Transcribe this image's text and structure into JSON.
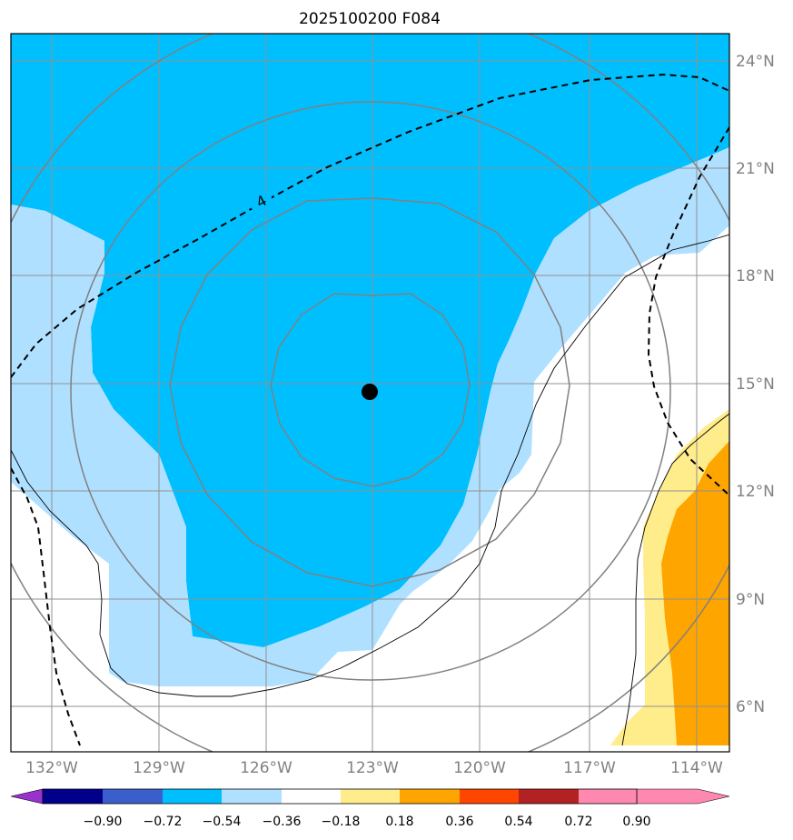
{
  "title": "2025100200 F084",
  "latitude_labels": [
    "24°N",
    "21°N",
    "18°N",
    "15°N",
    "12°N",
    "9°N",
    "6°N"
  ],
  "longitude_labels": [
    "132°W",
    "129°W",
    "126°W",
    "123°W",
    "120°W",
    "117°W",
    "114°W"
  ],
  "contour_label": "4",
  "colorbar": {
    "tick_labels": [
      "−0.90",
      "−0.72",
      "−0.54",
      "−0.36",
      "−0.18",
      "0.18",
      "0.36",
      "0.54",
      "0.72",
      "0.90"
    ],
    "colors": [
      "#9932cc",
      "#00008b",
      "#3a5fcd",
      "#00bfff",
      "#b0e0ff",
      "#ffffff",
      "#ffec8b",
      "#ffa500",
      "#ff4500",
      "#b22222",
      "#ff88b0"
    ]
  },
  "colors": {
    "field_deep": "#00bfff",
    "field_light": "#b0e0ff",
    "field_pale_yellow": "#ffec8b",
    "field_orange": "#ffa500",
    "grid": "#808080",
    "range_rings": "#808080",
    "contour": "#000000",
    "storm_center": "#000000"
  },
  "storm_center": {
    "lat": 14.8,
    "lon": -123.0
  },
  "extent": {
    "lon_min": -133.7,
    "lon_max": -113.7,
    "lat_min": 5.0,
    "lat_max": 24.8
  }
}
